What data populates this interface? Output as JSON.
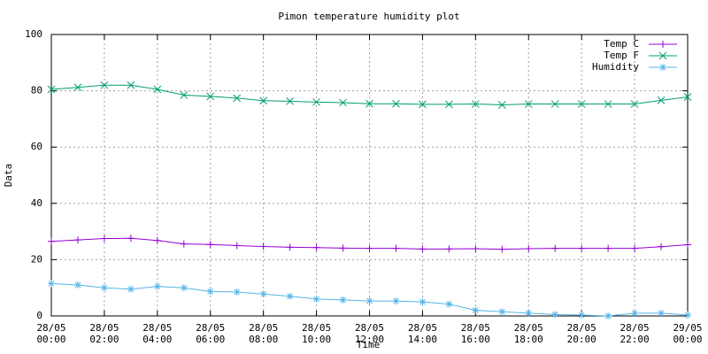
{
  "chart_data": {
    "type": "line",
    "title": "Pimon temperature   humidity plot",
    "xlabel": "Time",
    "ylabel": "Data",
    "x": [
      0,
      1,
      2,
      3,
      4,
      5,
      6,
      7,
      8,
      9,
      10,
      11,
      12,
      13,
      14,
      15,
      16,
      17,
      18,
      19,
      20,
      21,
      22,
      23,
      24
    ],
    "xlim": [
      0,
      24
    ],
    "xticks": [
      {
        "value": 0,
        "label": [
          "28/05",
          "00:00"
        ]
      },
      {
        "value": 2,
        "label": [
          "28/05",
          "02:00"
        ]
      },
      {
        "value": 4,
        "label": [
          "28/05",
          "04:00"
        ]
      },
      {
        "value": 6,
        "label": [
          "28/05",
          "06:00"
        ]
      },
      {
        "value": 8,
        "label": [
          "28/05",
          "08:00"
        ]
      },
      {
        "value": 10,
        "label": [
          "28/05",
          "10:00"
        ]
      },
      {
        "value": 12,
        "label": [
          "28/05",
          "12:00"
        ]
      },
      {
        "value": 14,
        "label": [
          "28/05",
          "14:00"
        ]
      },
      {
        "value": 16,
        "label": [
          "28/05",
          "16:00"
        ]
      },
      {
        "value": 18,
        "label": [
          "28/05",
          "18:00"
        ]
      },
      {
        "value": 20,
        "label": [
          "28/05",
          "20:00"
        ]
      },
      {
        "value": 22,
        "label": [
          "28/05",
          "22:00"
        ]
      },
      {
        "value": 24,
        "label": [
          "29/05",
          "00:00"
        ]
      }
    ],
    "ylim": [
      0,
      100
    ],
    "yticks": [
      0,
      20,
      40,
      60,
      80,
      100
    ],
    "grid": true,
    "legend": "top right",
    "series": [
      {
        "name": "Temp C",
        "color": "#9400d3",
        "marker": "plus",
        "values": [
          26.5,
          27,
          27.5,
          27.6,
          26.8,
          25.6,
          25.4,
          25,
          24.7,
          24.4,
          24.3,
          24.1,
          24,
          24,
          23.8,
          23.8,
          23.9,
          23.7,
          23.9,
          24,
          24,
          24,
          24,
          24.6,
          25.3
        ]
      },
      {
        "name": "Temp F",
        "color": "#009e73",
        "marker": "cross",
        "values": [
          80.5,
          81.2,
          82,
          82,
          80.5,
          78.5,
          78,
          77.4,
          76.5,
          76.3,
          76,
          75.8,
          75.4,
          75.4,
          75.2,
          75.2,
          75.3,
          75,
          75.3,
          75.3,
          75.3,
          75.3,
          75.3,
          76.6,
          77.8
        ]
      },
      {
        "name": "Humidity",
        "color": "#56b4e9",
        "marker": "star",
        "values": [
          11.5,
          11,
          10,
          9.5,
          10.5,
          10,
          8.7,
          8.5,
          7.8,
          7,
          6,
          5.7,
          5.3,
          5.3,
          5,
          4.2,
          2,
          1.5,
          1,
          0.5,
          0.3,
          0,
          1,
          1,
          0.3
        ]
      }
    ]
  }
}
